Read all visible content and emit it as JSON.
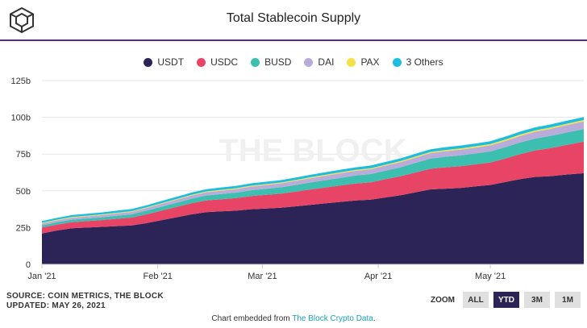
{
  "header": {
    "title": "Total Stablecoin Supply"
  },
  "chart_data": {
    "type": "area",
    "stacked": true,
    "title": "Total Stablecoin Supply",
    "xlabel": "",
    "ylabel": "",
    "ylim": [
      0,
      125
    ],
    "y_unit_suffix": "b",
    "y_ticks": [
      0,
      25,
      50,
      75,
      100,
      125
    ],
    "y_tick_labels": [
      "0",
      "25b",
      "50b",
      "75b",
      "100b",
      "125b"
    ],
    "x_ticks": [
      {
        "day": 0,
        "label": "Jan '21"
      },
      {
        "day": 31,
        "label": "Feb '21"
      },
      {
        "day": 59,
        "label": "Mar '21"
      },
      {
        "day": 90,
        "label": "Apr '21"
      },
      {
        "day": 120,
        "label": "May '21"
      }
    ],
    "x_range_days": [
      0,
      145
    ],
    "watermark": "THE BLOCK",
    "x": [
      0,
      4,
      8,
      12,
      16,
      20,
      24,
      28,
      32,
      36,
      40,
      44,
      48,
      52,
      56,
      60,
      64,
      68,
      72,
      76,
      80,
      84,
      88,
      92,
      96,
      100,
      104,
      108,
      112,
      116,
      120,
      124,
      128,
      132,
      136,
      140,
      145
    ],
    "series": [
      {
        "name": "USDT",
        "color": "#2c2457",
        "values": [
          21,
          23,
          24.5,
          25,
          25.5,
          26,
          26.5,
          28,
          30,
          32,
          34,
          35.5,
          36,
          36.5,
          37.5,
          38,
          38.5,
          39.5,
          40.5,
          41.5,
          42.5,
          43.5,
          44,
          45.5,
          47,
          49,
          51,
          51.5,
          52,
          53,
          54,
          56,
          58,
          59.5,
          60,
          61,
          62
        ]
      },
      {
        "name": "USDC",
        "color": "#e84466",
        "values": [
          4,
          4,
          4.2,
          4.4,
          4.6,
          5,
          5.3,
          6,
          6.5,
          7,
          7.5,
          8,
          8.3,
          8.6,
          9,
          9.3,
          9.6,
          10,
          10.5,
          10.8,
          11.2,
          11.5,
          11.8,
          12.5,
          13,
          13.5,
          14,
          14.5,
          14.8,
          15,
          15.3,
          16,
          17,
          18,
          19,
          20,
          21.5
        ]
      },
      {
        "name": "BUSD",
        "color": "#3cbfae",
        "values": [
          1.5,
          1.6,
          1.7,
          1.8,
          1.9,
          2,
          2.2,
          2.5,
          2.7,
          2.9,
          3.1,
          3.3,
          3.5,
          3.7,
          3.9,
          4.1,
          4.3,
          4.5,
          4.7,
          5,
          5.2,
          5.4,
          5.6,
          5.8,
          6,
          6.5,
          7,
          7.2,
          7.3,
          7.4,
          7.5,
          7.7,
          7.9,
          8.1,
          8.3,
          8.4,
          8.5
        ]
      },
      {
        "name": "DAI",
        "color": "#b9acdb",
        "values": [
          1.3,
          1.3,
          1.3,
          1.4,
          1.5,
          1.6,
          1.7,
          1.8,
          1.9,
          2,
          2.1,
          2.2,
          2.3,
          2.4,
          2.5,
          2.6,
          2.7,
          2.8,
          2.9,
          3,
          3.1,
          3.2,
          3.3,
          3.4,
          3.5,
          3.6,
          3.7,
          3.8,
          3.9,
          4,
          4.1,
          4.2,
          4.4,
          4.6,
          4.8,
          5,
          5.2
        ]
      },
      {
        "name": "PAX",
        "color": "#f5e04a",
        "values": [
          0.5,
          0.5,
          0.5,
          0.5,
          0.5,
          0.5,
          0.5,
          0.5,
          0.5,
          0.5,
          0.6,
          0.6,
          0.6,
          0.6,
          0.6,
          0.6,
          0.6,
          0.6,
          0.7,
          0.7,
          0.7,
          0.7,
          0.7,
          0.7,
          0.8,
          0.8,
          0.8,
          0.8,
          0.9,
          0.9,
          0.9,
          1,
          1,
          1,
          1,
          1,
          1
        ]
      },
      {
        "name": "3 Others",
        "color": "#1bbde0",
        "values": [
          1.2,
          1.2,
          1.3,
          1.3,
          1.3,
          1.4,
          1.4,
          1.4,
          1.5,
          1.5,
          1.5,
          1.5,
          1.6,
          1.6,
          1.6,
          1.6,
          1.6,
          1.7,
          1.7,
          1.7,
          1.7,
          1.7,
          1.8,
          1.8,
          1.8,
          1.8,
          1.8,
          1.9,
          1.9,
          1.9,
          1.9,
          2,
          2,
          2,
          2,
          2,
          2
        ]
      }
    ]
  },
  "footer": {
    "source_line": "SOURCE: COIN METRICS, THE BLOCK",
    "updated_line": "UPDATED: MAY 26, 2021",
    "embed_prefix": "Chart embedded from ",
    "embed_link": "The Block Crypto Data",
    "embed_suffix": "."
  },
  "zoom": {
    "label": "ZOOM",
    "buttons": [
      {
        "label": "ALL",
        "active": false
      },
      {
        "label": "YTD",
        "active": true
      },
      {
        "label": "3M",
        "active": false
      },
      {
        "label": "1M",
        "active": false
      }
    ]
  }
}
